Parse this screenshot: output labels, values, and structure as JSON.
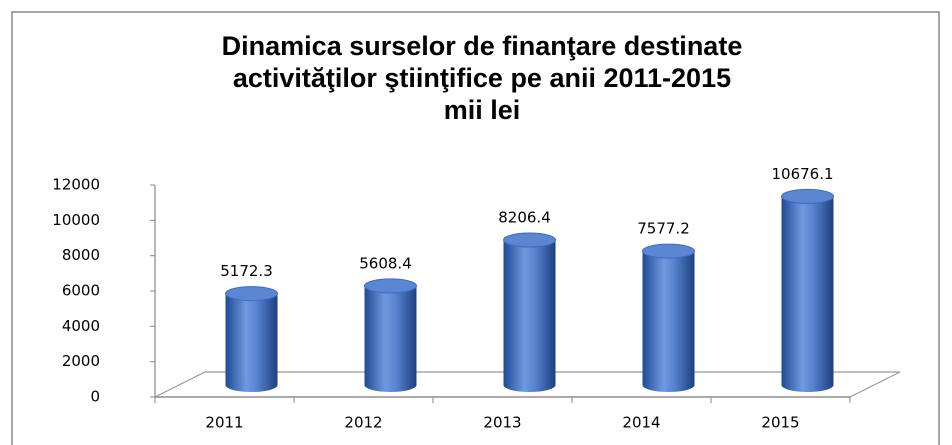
{
  "chart_data": {
    "type": "bar",
    "title": [
      "Dinamica surselor de finanţare destinate",
      "activităţilor ştiinţifice pe anii 2011-2015",
      "mii lei"
    ],
    "categories": [
      "2011",
      "2012",
      "2013",
      "2014",
      "2015"
    ],
    "values": [
      5172.3,
      5608.4,
      8206.4,
      7577.2,
      10676.1
    ],
    "color": "#3a6cc0",
    "ylim": [
      0,
      12000
    ],
    "yticks": [
      0,
      2000,
      4000,
      6000,
      8000,
      10000,
      12000
    ],
    "grid": false
  }
}
